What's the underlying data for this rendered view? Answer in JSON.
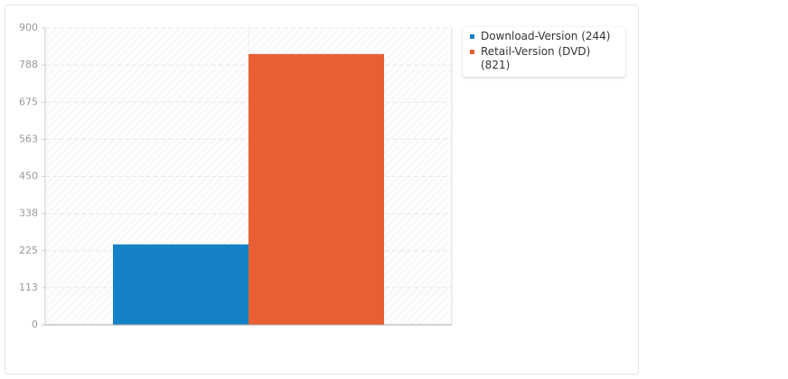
{
  "chart_data": {
    "type": "bar",
    "series": [
      {
        "name": "Download-Version (244)",
        "color": "#1582c8",
        "values": [
          244
        ]
      },
      {
        "name": "Retail-Version (DVD) (821)",
        "color": "#e85f33",
        "values": [
          821
        ]
      }
    ],
    "ylim": [
      0,
      900
    ],
    "yticks": [
      0,
      {
        "value": 112.5,
        "label": "113"
      },
      225,
      {
        "value": 337.5,
        "label": "338"
      },
      450,
      {
        "value": 562.5,
        "label": "563"
      },
      675,
      {
        "value": 787.5,
        "label": "788"
      },
      900
    ],
    "grid": true
  }
}
